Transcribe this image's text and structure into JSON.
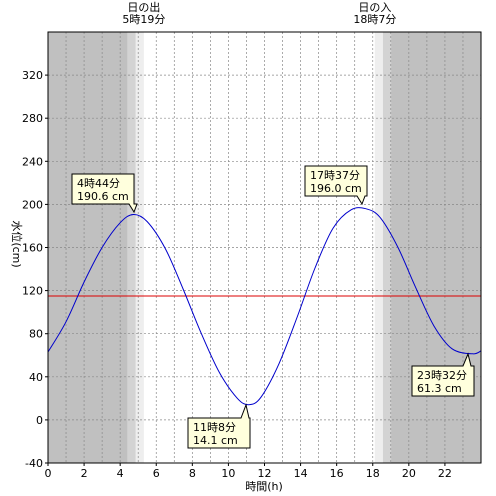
{
  "chart_data": {
    "type": "line",
    "xlabel": "時間(h)",
    "ylabel": "水位(cm)",
    "xlim": [
      0,
      24
    ],
    "ylim": [
      -40,
      360
    ],
    "x_ticks": [
      0,
      2,
      4,
      6,
      8,
      10,
      12,
      14,
      16,
      18,
      20,
      22
    ],
    "y_ticks": [
      -40,
      0,
      40,
      80,
      120,
      160,
      200,
      240,
      280,
      320
    ],
    "grid": true,
    "reference_level": 115,
    "sunrise": {
      "label_top": "日の出",
      "label_time": "5時19分",
      "hour": 5.3167
    },
    "sunset": {
      "label_top": "日の入",
      "label_time": "18時7分",
      "hour": 18.1167
    },
    "series": [
      {
        "x": [
          0,
          1,
          2,
          3,
          4,
          4.733,
          5.5,
          6.5,
          7.5,
          8.5,
          9.5,
          10.5,
          11.133,
          11.8,
          12.8,
          13.8,
          14.8,
          15.8,
          16.8,
          17.617,
          18.4,
          19.4,
          20.4,
          21.4,
          22.4,
          23.533,
          24
        ],
        "y": [
          63,
          91,
          128,
          160,
          183,
          190.6,
          184,
          159,
          121,
          80,
          44,
          20,
          14.1,
          21,
          52,
          95,
          141,
          178,
          195,
          196,
          188,
          160,
          122,
          87,
          66,
          61.3,
          64
        ],
        "color": "#0000cc"
      }
    ],
    "annotations": [
      {
        "line1": "4時44分",
        "line2": "190.6 cm"
      },
      {
        "line1": "11時8分",
        "line2": "14.1 cm"
      },
      {
        "line1": "17時37分",
        "line2": "196.0 cm"
      },
      {
        "line1": "23時32分",
        "line2": "61.3 cm"
      }
    ],
    "colors": {
      "night": "#c0c0c0",
      "twilight_dark": "#d3d3d3",
      "twilight_light": "#eeeeee",
      "day": "#ffffff",
      "reference_line": "#dd0000",
      "annotation_fill": "#ffffdd"
    }
  }
}
